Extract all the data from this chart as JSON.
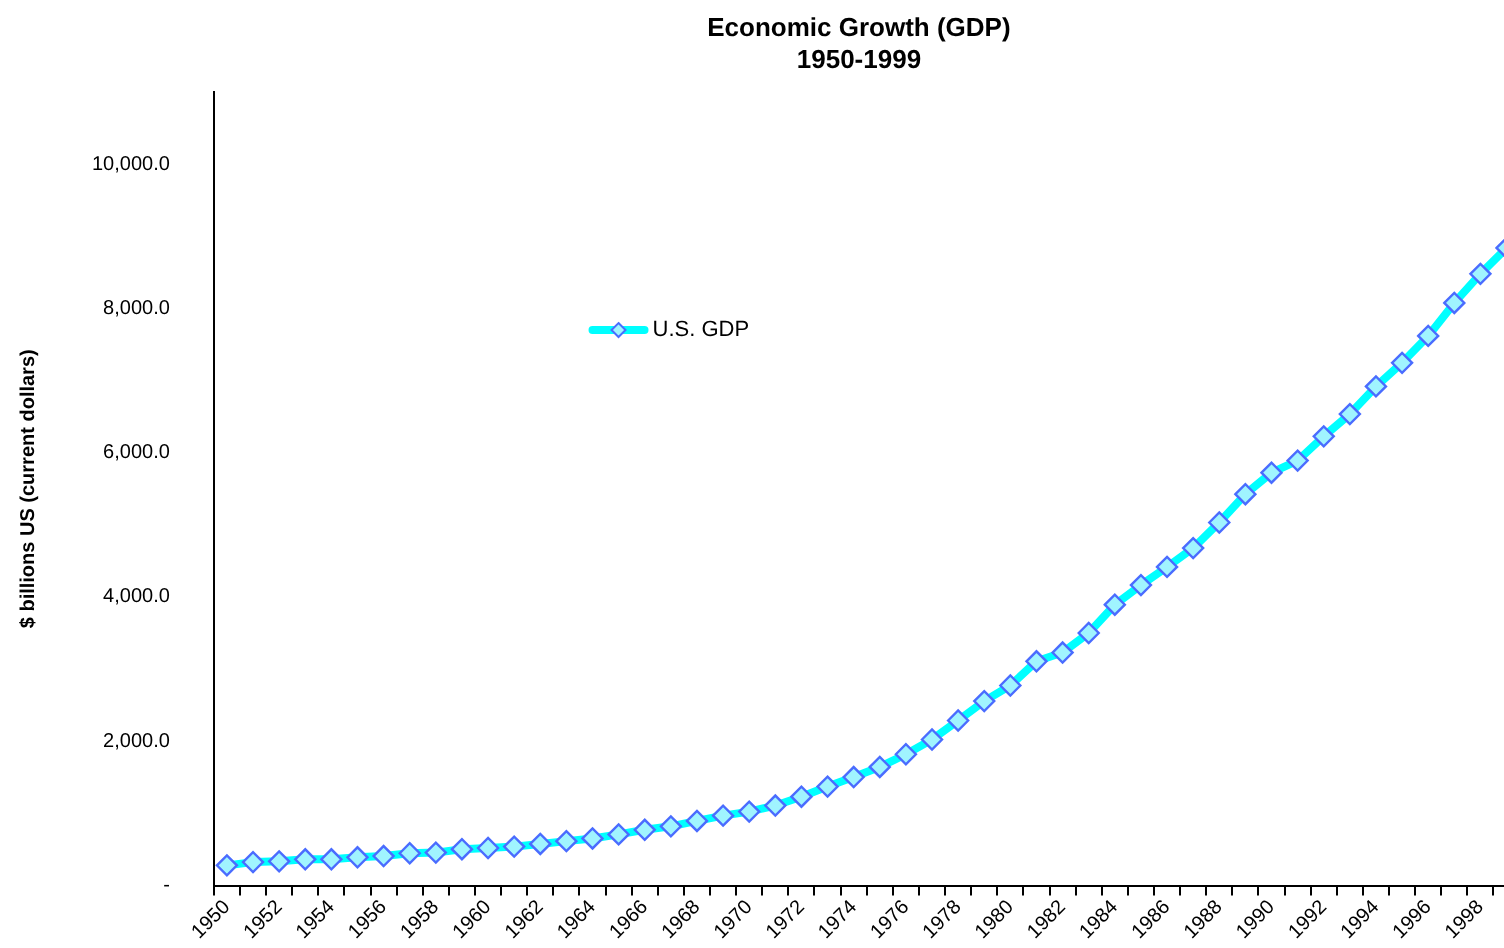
{
  "chart_data": {
    "type": "line",
    "title": "Economic Growth (GDP)",
    "subtitle": "1950-1999",
    "ylabel": "$ billions US (current dollars)",
    "categories": [
      "1950",
      null,
      "1952",
      null,
      "1954",
      null,
      "1956",
      null,
      "1958",
      null,
      "1960",
      null,
      "1962",
      null,
      "1964",
      null,
      "1966",
      null,
      "1968",
      null,
      "1970",
      null,
      "1972",
      null,
      "1974",
      null,
      "1976",
      null,
      "1978",
      null,
      "1980",
      null,
      "1982",
      null,
      "1984",
      null,
      "1986",
      null,
      "1988",
      null,
      "1990",
      null,
      "1992",
      null,
      "1994",
      null,
      "1996",
      null,
      "1998",
      null
    ],
    "series": [
      {
        "name": "U.S. GDP",
        "color": "#00ffff",
        "values": [
          280,
          325,
          336,
          364,
          364,
          392,
          409,
          448,
          457,
          504,
          521,
          540,
          577,
          616,
          653,
          709,
          773,
          821,
          896,
          969,
          1025,
          1109,
          1232,
          1372,
          1504,
          1644,
          1820,
          2025,
          2288,
          2557,
          2773,
          3109,
          3230,
          3501,
          3893,
          4165,
          4417,
          4678,
          5033,
          5425,
          5723,
          5891,
          6227,
          6535,
          6919,
          7246,
          7619,
          8076,
          8479,
          8838
        ]
      }
    ],
    "ylim": [
      0,
      11000
    ],
    "yticks": [
      {
        "value": 0,
        "label": "-"
      },
      {
        "value": 2000,
        "label": "2,000.0"
      },
      {
        "value": 4000,
        "label": "4,000.0"
      },
      {
        "value": 6000,
        "label": "6,000.0"
      },
      {
        "value": 8000,
        "label": "8,000.0"
      },
      {
        "value": 10000,
        "label": "10,000.0"
      }
    ],
    "grid": false,
    "legend": "top left",
    "marker": "diamond",
    "line_style": "solid"
  }
}
